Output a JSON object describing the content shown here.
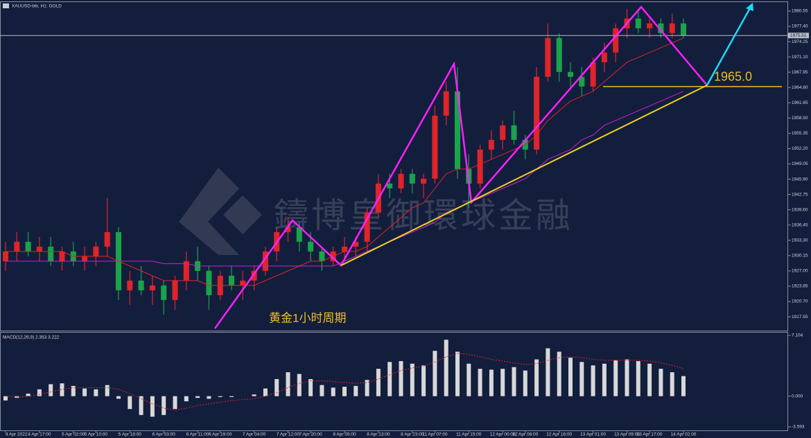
{
  "header": "XAUUSD-bib, H1:  GOLD",
  "watermark": "鑄博皇御環球金融",
  "chart_data": {
    "type": "candlestick",
    "categories": [
      "4 Apr 2022",
      null,
      null,
      "4 Apr 17:00",
      null,
      null,
      "5 Apr 02:00",
      null,
      "5 Apr 10:00",
      null,
      null,
      "5 Apr 18:00",
      null,
      null,
      "6 Apr 03:00",
      null,
      null,
      "6 Apr 11:00",
      null,
      "6 Apr 19:00",
      null,
      null,
      "7 Apr 04:00",
      null,
      null,
      "7 Apr 12:00",
      null,
      "7 Apr 20:00",
      null,
      null,
      "8 Apr 05:00",
      null,
      null,
      "8 Apr 13:00",
      null,
      null,
      "8 Apr 23:00",
      null,
      "11 Apr 07:00",
      null,
      null,
      "11 Apr 15:00",
      null,
      null,
      "12 Apr 00:00",
      null,
      "12 Apr 08:00",
      null,
      null,
      "12 Apr 16:00",
      null,
      null,
      "13 Apr 01:00",
      null,
      null,
      "13 Apr 09:00",
      null,
      "13 Apr 17:00",
      null,
      null,
      "14 Apr 02:00"
    ],
    "ohlc": [
      [
        1929,
        1933,
        1927,
        1931
      ],
      [
        1931,
        1935,
        1929,
        1933
      ],
      [
        1933,
        1935,
        1930,
        1931
      ],
      [
        1931,
        1934,
        1929,
        1932
      ],
      [
        1932,
        1934,
        1928,
        1929
      ],
      [
        1929,
        1932,
        1927,
        1931
      ],
      [
        1931,
        1933,
        1928,
        1929
      ],
      [
        1929,
        1932,
        1927,
        1930
      ],
      [
        1930,
        1933,
        1928,
        1932
      ],
      [
        1932,
        1942,
        1930,
        1935
      ],
      [
        1935,
        1936,
        1921,
        1923
      ],
      [
        1923,
        1927,
        1920,
        1925
      ],
      [
        1925,
        1928,
        1922,
        1923
      ],
      [
        1923,
        1926,
        1920,
        1924
      ],
      [
        1924,
        1925,
        1918,
        1921
      ],
      [
        1921,
        1926,
        1919,
        1925
      ],
      [
        1925,
        1931,
        1923,
        1929
      ],
      [
        1929,
        1932,
        1925,
        1927
      ],
      [
        1927,
        1928,
        1919,
        1922
      ],
      [
        1922,
        1927,
        1921,
        1926
      ],
      [
        1926,
        1928,
        1923,
        1924
      ],
      [
        1924,
        1927,
        1921,
        1925
      ],
      [
        1925,
        1928,
        1923,
        1927
      ],
      [
        1927,
        1932,
        1926,
        1931
      ],
      [
        1931,
        1936,
        1929,
        1935
      ],
      [
        1935,
        1938,
        1933,
        1936
      ],
      [
        1936,
        1937,
        1931,
        1933
      ],
      [
        1933,
        1935,
        1929,
        1931
      ],
      [
        1931,
        1932,
        1927,
        1929
      ],
      [
        1929,
        1932,
        1928,
        1931
      ],
      [
        1931,
        1934,
        1929,
        1932
      ],
      [
        1932,
        1934,
        1930,
        1933
      ],
      [
        1933,
        1940,
        1931,
        1939
      ],
      [
        1939,
        1947,
        1938,
        1945
      ],
      [
        1945,
        1947,
        1942,
        1944
      ],
      [
        1944,
        1948,
        1943,
        1947
      ],
      [
        1947,
        1948,
        1943,
        1945
      ],
      [
        1945,
        1947,
        1942,
        1946
      ],
      [
        1946,
        1961,
        1945,
        1959
      ],
      [
        1959,
        1966,
        1957,
        1964
      ],
      [
        1964,
        1969,
        1946,
        1948
      ],
      [
        1948,
        1951,
        1940,
        1945
      ],
      [
        1945,
        1953,
        1944,
        1952
      ],
      [
        1952,
        1956,
        1950,
        1954
      ],
      [
        1954,
        1958,
        1952,
        1957
      ],
      [
        1957,
        1960,
        1953,
        1954
      ],
      [
        1954,
        1955,
        1950,
        1952
      ],
      [
        1952,
        1969,
        1951,
        1967
      ],
      [
        1967,
        1978,
        1966,
        1975
      ],
      [
        1975,
        1976,
        1966,
        1968
      ],
      [
        1968,
        1970,
        1965,
        1967
      ],
      [
        1967,
        1969,
        1963,
        1965
      ],
      [
        1965,
        1971,
        1964,
        1970
      ],
      [
        1970,
        1974,
        1968,
        1972
      ],
      [
        1972,
        1978,
        1970,
        1977
      ],
      [
        1977,
        1981,
        1975,
        1979
      ],
      [
        1979,
        1981,
        1976,
        1977
      ],
      [
        1977,
        1979,
        1975,
        1978
      ],
      [
        1978,
        1979,
        1975,
        1976
      ],
      [
        1976,
        1980,
        1975,
        1978
      ],
      [
        1978,
        1979,
        1975,
        1975.51
      ]
    ],
    "up_color": "#e0242a",
    "down_color": "#19a34a",
    "ma_lines": [
      {
        "color": "#e0242a",
        "values": [
          1931,
          1931,
          1931,
          1931,
          1931,
          1931,
          1930,
          1930,
          1930,
          1930,
          1929,
          1928,
          1927,
          1926,
          1925,
          1925,
          1925,
          1925,
          1924,
          1924,
          1924,
          1924,
          1924,
          1925,
          1926,
          1927,
          1928,
          1929,
          1929,
          1930,
          1931,
          1931,
          1932,
          1934,
          1936,
          1938,
          1940,
          1941,
          1944,
          1947,
          1948,
          1948,
          1949,
          1950,
          1951,
          1952,
          1953,
          1955,
          1958,
          1960,
          1962,
          1963,
          1964,
          1966,
          1968,
          1970,
          1971,
          1972,
          1973,
          1974,
          1975
        ]
      },
      {
        "color": "#d020d0",
        "values": [
          1929,
          1929,
          1929,
          1929,
          1929,
          1929,
          1929,
          1929,
          1929,
          1929,
          1929,
          1929,
          1929,
          1929,
          1928.5,
          1928.5,
          1928.5,
          1928,
          1928,
          1928,
          1928,
          1928,
          1928,
          1928,
          1928,
          1928,
          1928,
          1928,
          1928,
          1928,
          1929,
          1930,
          1931,
          1932,
          1933,
          1934,
          1935,
          1936,
          1937,
          1939,
          1940,
          1941,
          1942,
          1943,
          1944,
          1945,
          1946,
          1948,
          1950,
          1951,
          1952,
          1954,
          1955,
          1957,
          1958,
          1959,
          1960,
          1961,
          1962,
          1963,
          1964
        ]
      }
    ],
    "ylim": [
      1914.7,
      1982.4
    ],
    "yticks": [
      1980.55,
      {
        "value": 1977.4,
        "label": "1977.40"
      },
      1974.25,
      {
        "value": 1971.1,
        "label": "1971.10"
      },
      1967.95,
      {
        "value": 1964.8,
        "label": "1964.80"
      },
      1961.65,
      {
        "value": 1958.5,
        "label": "1958.50"
      },
      1955.35,
      {
        "value": 1952.2,
        "label": "1952.20"
      },
      1949.05,
      {
        "value": 1945.9,
        "label": "1945.90"
      },
      1942.75,
      {
        "value": 1939.6,
        "label": "1939.60"
      },
      1936.45,
      {
        "value": 1933.3,
        "label": "1933.30"
      },
      1930.15,
      {
        "value": 1927,
        "label": "1927.00"
      },
      1923.85,
      {
        "value": 1920.7,
        "label": "1920.70"
      },
      1917.55
    ],
    "current_price": 1975.51,
    "annotations": [
      {
        "text": "黄金1小时周期"
      }
    ],
    "level": {
      "value": 1965,
      "label": "1965.0",
      "color": "#e8c020"
    },
    "indicator": {
      "type": "macd",
      "title": "MACD(12,26,9) 2.353 3.222",
      "histogram": [
        -0.5,
        -0.2,
        0.3,
        0.8,
        1.4,
        1.5,
        1.2,
        0.9,
        0.8,
        1.3,
        -0.3,
        -1.5,
        -2.2,
        -2.4,
        -2.2,
        -1.5,
        -0.6,
        -0.2,
        -0.3,
        -0.1,
        -0.1,
        0.0,
        0.2,
        0.9,
        2.0,
        2.8,
        2.6,
        2.0,
        1.3,
        1.0,
        1.1,
        1.2,
        1.9,
        3.2,
        4.0,
        4.1,
        3.8,
        3.6,
        5.3,
        6.6,
        5.2,
        3.8,
        3.2,
        3.1,
        3.2,
        3.4,
        3.0,
        4.3,
        5.6,
        5.2,
        4.5,
        4.0,
        3.6,
        3.8,
        4.2,
        4.3,
        4.1,
        3.8,
        3.2,
        2.8,
        2.353
      ],
      "signal": [
        0.0,
        -0.1,
        0,
        0.2,
        0.5,
        0.8,
        1.0,
        1.0,
        1.0,
        1.0,
        0.8,
        0.3,
        -0.3,
        -0.9,
        -1.4,
        -1.6,
        -1.4,
        -1.1,
        -0.9,
        -0.7,
        -0.5,
        -0.4,
        -0.3,
        0.0,
        0.4,
        1.0,
        1.5,
        1.8,
        1.8,
        1.7,
        1.6,
        1.5,
        1.6,
        2.0,
        2.5,
        3.0,
        3.3,
        3.5,
        4.0,
        4.6,
        5.0,
        4.9,
        4.6,
        4.3,
        4.1,
        3.9,
        3.7,
        3.8,
        4.2,
        4.5,
        4.6,
        4.5,
        4.3,
        4.2,
        4.2,
        4.2,
        4.2,
        4.1,
        3.9,
        3.6,
        3.222
      ],
      "hist_color": "#d8d8d8",
      "signal_color": "#e0242a",
      "ylim": [
        -4.08,
        7.51
      ],
      "yticks": [
        7.104,
        {
          "value": 0,
          "label": "0.000"
        },
        -3.593
      ]
    }
  }
}
